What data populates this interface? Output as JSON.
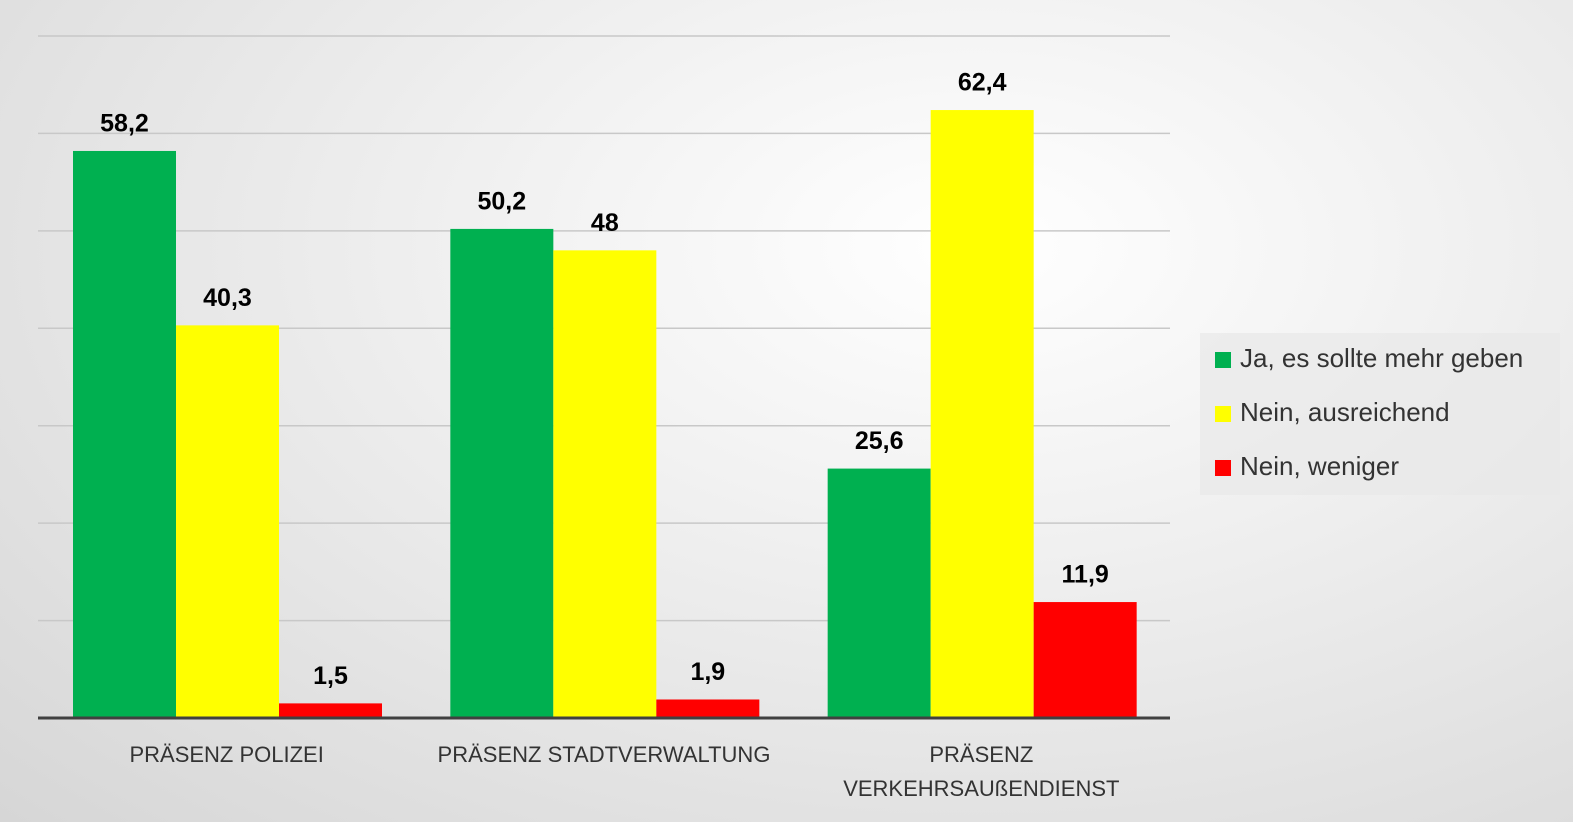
{
  "chart_data": {
    "type": "bar",
    "categories": [
      "PRÄSENZ POLIZEI",
      "PRÄSENZ STADTVERWALTUNG",
      "PRÄSENZ VERKEHRSAUßENDIENST"
    ],
    "series": [
      {
        "name": "Ja, es sollte mehr geben",
        "color": "#00b050",
        "values": [
          58.2,
          50.2,
          25.6
        ],
        "value_labels": [
          "58,2",
          "50,2",
          "25,6"
        ]
      },
      {
        "name": "Nein, ausreichend",
        "color": "#ffff00",
        "values": [
          40.3,
          48,
          62.4
        ],
        "value_labels": [
          "40,3",
          "48",
          "62,4"
        ]
      },
      {
        "name": "Nein, weniger",
        "color": "#ff0000",
        "values": [
          1.5,
          1.9,
          11.9
        ],
        "value_labels": [
          "1,5",
          "1,9",
          "11,9"
        ]
      }
    ],
    "ylim": [
      0,
      70
    ],
    "yticks": [
      0,
      10,
      20,
      30,
      40,
      50,
      60,
      70
    ],
    "grid": true,
    "legend": "right"
  }
}
